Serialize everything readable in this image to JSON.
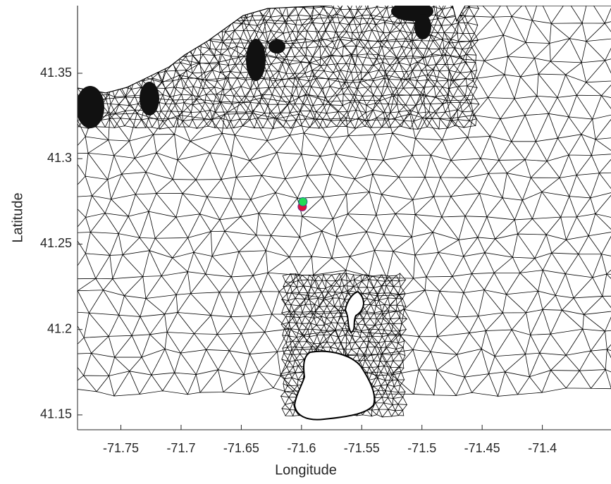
{
  "chart_data": {
    "type": "scatter",
    "x_label": "Longitude",
    "y_label": "Latitude",
    "xlim": [
      -71.786,
      -71.343
    ],
    "ylim": [
      41.1413,
      41.3896
    ],
    "xticks": [
      -71.75,
      -71.7,
      -71.65,
      -71.6,
      -71.55,
      -71.5,
      -71.45,
      -71.4
    ],
    "yticks": [
      41.15,
      41.2,
      41.25,
      41.3,
      41.35
    ],
    "points": [
      {
        "color": "#e0103c",
        "edge": "#6a2a8a",
        "x": -71.5994,
        "y": 41.2719
      },
      {
        "color": "#22dd55",
        "edge": "#2a6a8a",
        "x": -71.5988,
        "y": 41.2748
      }
    ]
  }
}
